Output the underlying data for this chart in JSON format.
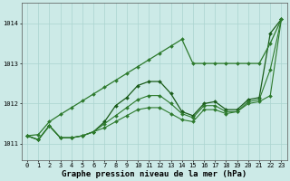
{
  "title": "Graphe pression niveau de la mer (hPa)",
  "background_color": "#cceae7",
  "grid_color": "#aad4d0",
  "line_colors": [
    "#1a5c1a",
    "#2d7a2d",
    "#2d7a2d",
    "#2d7a2d"
  ],
  "xlim": [
    -0.5,
    23.5
  ],
  "ylim": [
    1010.6,
    1014.5
  ],
  "yticks": [
    1011,
    1012,
    1013,
    1014
  ],
  "xticks": [
    0,
    1,
    2,
    3,
    4,
    5,
    6,
    7,
    8,
    9,
    10,
    11,
    12,
    13,
    14,
    15,
    16,
    17,
    18,
    19,
    20,
    21,
    22,
    23
  ],
  "series": [
    [
      1011.2,
      1011.1,
      1011.45,
      1011.15,
      1011.15,
      1011.2,
      1011.3,
      1011.55,
      1011.95,
      1012.15,
      1012.45,
      1012.55,
      1012.55,
      1012.25,
      1011.8,
      1011.7,
      1012.0,
      1012.05,
      1011.85,
      1011.85,
      1012.1,
      1012.15,
      1013.75,
      1014.1
    ],
    [
      1011.2,
      1011.1,
      1011.45,
      1011.15,
      1011.15,
      1011.2,
      1011.3,
      1011.5,
      1011.7,
      1011.9,
      1012.1,
      1012.2,
      1012.2,
      1012.0,
      1011.75,
      1011.65,
      1011.95,
      1011.95,
      1011.8,
      1011.8,
      1012.05,
      1012.1,
      1012.85,
      1014.1
    ],
    [
      1011.2,
      1011.1,
      1011.45,
      1011.15,
      1011.15,
      1011.2,
      1011.3,
      1011.4,
      1011.55,
      1011.7,
      1011.85,
      1011.9,
      1011.9,
      1011.75,
      1011.6,
      1011.55,
      1011.85,
      1011.85,
      1011.75,
      1011.8,
      1012.0,
      1012.05,
      1012.2,
      1014.1
    ],
    [
      1011.2,
      1011.23,
      1011.55,
      1011.73,
      1011.9,
      1012.07,
      1012.24,
      1012.41,
      1012.58,
      1012.75,
      1012.92,
      1013.09,
      1013.26,
      1013.43,
      1013.6,
      1013.0,
      1013.0,
      1013.0,
      1013.0,
      1013.0,
      1013.0,
      1013.0,
      1013.5,
      1014.1
    ]
  ],
  "linewidths": [
    0.9,
    0.8,
    0.8,
    0.9
  ],
  "marker": "D",
  "markersizes": [
    2.0,
    2.0,
    2.0,
    2.0
  ],
  "fontsize_title": 6.5,
  "fontsize_ticks": 5.0
}
